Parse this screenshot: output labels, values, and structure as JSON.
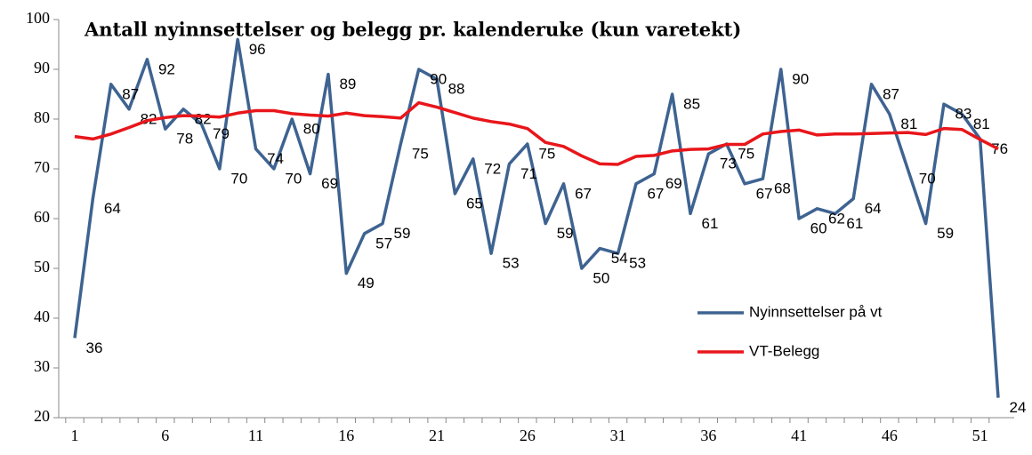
{
  "chart_data": {
    "type": "line",
    "title": "Antall nyinnsettelser og belegg pr. kalenderuke (kun varetekt)",
    "categories": [
      1,
      null,
      null,
      null,
      null,
      6,
      null,
      null,
      null,
      null,
      11,
      null,
      null,
      null,
      null,
      16,
      null,
      null,
      null,
      null,
      21,
      null,
      null,
      null,
      null,
      26,
      null,
      null,
      null,
      null,
      31,
      null,
      null,
      null,
      null,
      36,
      null,
      null,
      null,
      null,
      41,
      null,
      null,
      null,
      null,
      46,
      null,
      null,
      null,
      null,
      51,
      null
    ],
    "series": [
      {
        "name": "Nyinnsettelser på vt",
        "color": "#3e6391",
        "labels": true,
        "values": [
          36,
          64,
          87,
          82,
          92,
          78,
          82,
          79,
          70,
          96,
          74,
          70,
          80,
          69,
          89,
          49,
          57,
          59,
          75,
          90,
          88,
          65,
          72,
          53,
          71,
          75,
          59,
          67,
          50,
          54,
          53,
          67,
          69,
          85,
          61,
          73,
          75,
          67,
          68,
          90,
          60,
          62,
          61,
          64,
          87,
          81,
          70,
          59,
          83,
          81,
          76,
          24
        ]
      },
      {
        "name": "VT-Belegg",
        "color": "#e8161b",
        "labels": false,
        "values": [
          76.5,
          76,
          77,
          78.3,
          79.7,
          80.3,
          80.7,
          80.6,
          80.4,
          81.2,
          81.7,
          81.7,
          81.1,
          80.8,
          80.6,
          81.2,
          80.7,
          80.5,
          80.2,
          83.3,
          82.4,
          81.3,
          80.2,
          79.5,
          79,
          78.1,
          75.3,
          74.5,
          72.6,
          71,
          70.9,
          72.5,
          72.7,
          73.6,
          73.9,
          74,
          74.9,
          74.9,
          77,
          77.5,
          77.8,
          76.8,
          77,
          77,
          77.1,
          77.2,
          77.3,
          76.9,
          78.1,
          77.9,
          75.9,
          74
        ]
      }
    ],
    "ylim": [
      20,
      100
    ],
    "yticks": [
      20,
      30,
      40,
      50,
      60,
      70,
      80,
      90,
      100
    ],
    "legend": "right"
  }
}
